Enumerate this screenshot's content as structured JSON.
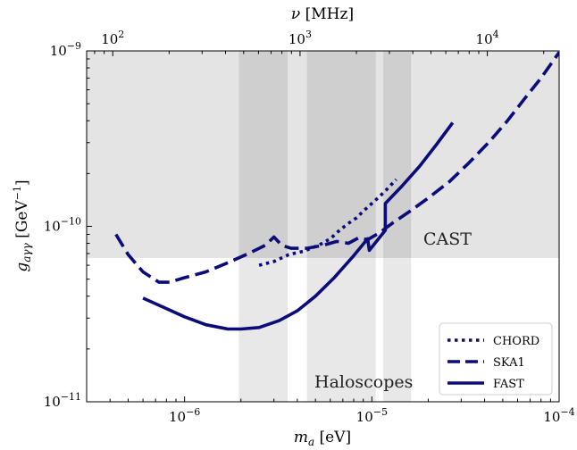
{
  "chart_data": {
    "type": "line",
    "xscale": "log",
    "yscale": "log",
    "xlim": [
      3e-07,
      0.0001
    ],
    "ylim": [
      1e-11,
      1e-09
    ],
    "grid": false,
    "legend_position": "lower-right",
    "xlabel": {
      "base": "m",
      "sub": "a",
      "rest": " [eV]"
    },
    "ylabel": {
      "base": "g",
      "sub": "aγγ",
      "rest": " [GeV",
      "sup": "−1",
      "end": "]"
    },
    "top_axis": {
      "label": {
        "base": "ν",
        "rest": " [MHz]"
      },
      "ticks": [
        {
          "mhz": 100,
          "mantissa": "10",
          "exp": "2"
        },
        {
          "mhz": 1000,
          "mantissa": "10",
          "exp": "3"
        },
        {
          "mhz": 10000,
          "mantissa": "10",
          "exp": "4"
        }
      ]
    },
    "xticks": [
      {
        "value": 1e-06,
        "mantissa": "10",
        "exp": "−6"
      },
      {
        "value": 1e-05,
        "mantissa": "10",
        "exp": "−5"
      },
      {
        "value": 0.0001,
        "mantissa": "10",
        "exp": "−4"
      }
    ],
    "yticks": [
      {
        "value": 1e-11,
        "mantissa": "10",
        "exp": "−11"
      },
      {
        "value": 1e-10,
        "mantissa": "10",
        "exp": "−10"
      },
      {
        "value": 1e-09,
        "mantissa": "10",
        "exp": "−9"
      }
    ],
    "regions": [
      {
        "name": "CAST",
        "x": [
          3e-07,
          0.0001
        ],
        "y": [
          6.6e-11,
          1e-09
        ],
        "color": "#e4e4e4"
      },
      {
        "name": "Haloscopes",
        "bands": [
          [
            1.95e-06,
            3.55e-06
          ],
          [
            4.5e-06,
            1.05e-05
          ],
          [
            1.15e-05,
            1.62e-05
          ]
        ],
        "color": "#e4e4e4"
      }
    ],
    "region_labels": {
      "cast": "CAST",
      "haloscopes": "Haloscopes"
    },
    "series": [
      {
        "name": "CHORD",
        "style": "dotted",
        "color": "#0b0b7a",
        "x": [
          2.5e-06,
          3e-06,
          3.6e-06,
          4.3e-06,
          5.2e-06,
          6e-06,
          6.8e-06,
          7.5e-06,
          8.3e-06,
          9e-06,
          1e-05,
          1.1e-05,
          1.2e-05,
          1.35e-05
        ],
        "y": [
          6e-11,
          6.3e-11,
          6.9e-11,
          7.2e-11,
          7.8e-11,
          8.5e-11,
          9.6e-11,
          1.04e-10,
          1.12e-10,
          1.22e-10,
          1.35e-10,
          1.48e-10,
          1.62e-10,
          1.85e-10
        ]
      },
      {
        "name": "SKA1",
        "style": "dashed",
        "color": "#0b0b7a",
        "x": [
          4.3e-07,
          5e-07,
          6e-07,
          7.3e-07,
          8.3e-07,
          1e-06,
          1.3e-06,
          1.7e-06,
          2.2e-06,
          2.7e-06,
          3e-06,
          3.3e-06,
          3.7e-06,
          4.5e-06,
          5.5e-06,
          6.5e-06,
          7.5e-06,
          8.5e-06,
          9.5e-06,
          1.1e-05,
          1.3e-05,
          1.6e-05,
          2e-05,
          2.6e-05,
          3.3e-05,
          4.2e-05,
          5.3e-05,
          6.5e-05,
          8e-05,
          0.0001
        ],
        "y": [
          9e-11,
          6.9e-11,
          5.5e-11,
          4.8e-11,
          4.8e-11,
          5.1e-11,
          5.5e-11,
          6.2e-11,
          7e-11,
          7.8e-11,
          8.7e-11,
          7.8e-11,
          7.5e-11,
          7.5e-11,
          7.8e-11,
          8.2e-11,
          8e-11,
          8.6e-11,
          8.4e-11,
          9.2e-11,
          1.05e-10,
          1.22e-10,
          1.45e-10,
          1.8e-10,
          2.3e-10,
          3e-10,
          4e-10,
          5.3e-10,
          7e-10,
          9.8e-10
        ]
      },
      {
        "name": "FAST",
        "style": "solid",
        "color": "#0b0b7a",
        "x": [
          6e-07,
          8e-07,
          1e-06,
          1.3e-06,
          1.7e-06,
          2e-06,
          2.5e-06,
          3.2e-06,
          4e-06,
          5e-06,
          6.3e-06,
          8e-06,
          9.5e-06,
          9.7e-06,
          1.18e-05,
          1.18e-05,
          1.45e-05,
          1.8e-05,
          2.2e-05,
          2.7e-05
        ],
        "y": [
          3.9e-11,
          3.4e-11,
          3.05e-11,
          2.75e-11,
          2.6e-11,
          2.6e-11,
          2.65e-11,
          2.9e-11,
          3.3e-11,
          4e-11,
          5.1e-11,
          6.8e-11,
          8.5e-11,
          7.3e-11,
          9.5e-11,
          1.35e-10,
          1.7e-10,
          2.2e-10,
          2.9e-10,
          3.9e-10
        ]
      }
    ]
  }
}
